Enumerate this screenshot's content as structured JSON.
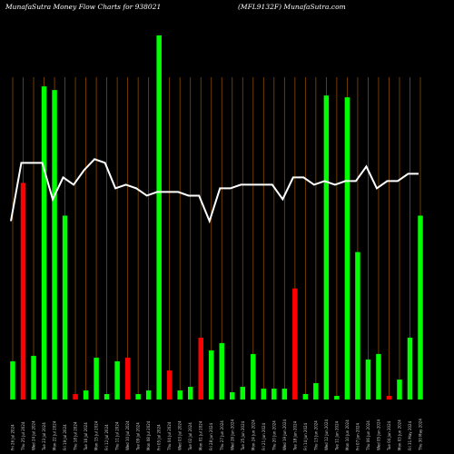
{
  "header": {
    "left": "MunafaSutra  Money Flow  Charts for 938021",
    "right": "(MFL9132F) MunafaSutra.com"
  },
  "colors": {
    "background": "#000000",
    "grid": "#8a4a00",
    "up_bar": "#00ff00",
    "down_bar": "#ff0000",
    "line": "#ffffff"
  },
  "chart_data": {
    "type": "bar",
    "ylim": [
      0,
      100
    ],
    "grid": "vertical",
    "categories": [
      "Fri 26 Jul 2024",
      "Thu 25 Jul 2024",
      "Wed 24 Jul 2024",
      "Tue 23 Jul 2024",
      "Mon 22 Jul 2024",
      "Fri 19 Jul 2024",
      "Thu 18 Jul 2024",
      "Tue 16 Jul 2024",
      "Mon 15 Jul 2024",
      "Fri 12 Jul 2024",
      "Thu 11 Jul 2024",
      "Wed 10 Jul 2024",
      "Tue 09 Jul 2024",
      "Mon 08 Jul 2024",
      "Fri 05 Jul 2024",
      "Thu 04 Jul 2024",
      "Wed 03 Jul 2024",
      "Tue 02 Jul 2024",
      "Mon 01 Jul 2024",
      "Fri 28 Jun 2024",
      "Thu 27 Jun 2024",
      "Wed 26 Jun 2024",
      "Tue 25 Jun 2024",
      "Mon 24 Jun 2024",
      "Fri 21 Jun 2024",
      "Thu 20 Jun 2024",
      "Wed 19 Jun 2024",
      "Tue 18 Jun 2024",
      "Fri 14 Jun 2024",
      "Thu 13 Jun 2024",
      "Wed 12 Jun 2024",
      "Tue 11 Jun 2024",
      "Mon 10 Jun 2024",
      "Fri 07 Jun 2024",
      "Thu 06 Jun 2024",
      "Wed 05 Jun 2024",
      "Tue 04 Jun 2024",
      "Mon 03 Jun 2024",
      "Fri 31 May 2024",
      "Thu 30 May 2024"
    ],
    "bars": [
      {
        "value": 10.5,
        "dir": "up"
      },
      {
        "value": 59.5,
        "dir": "down"
      },
      {
        "value": 12.0,
        "dir": "up"
      },
      {
        "value": 86.0,
        "dir": "up"
      },
      {
        "value": 85.0,
        "dir": "up"
      },
      {
        "value": 50.5,
        "dir": "up"
      },
      {
        "value": 1.5,
        "dir": "down"
      },
      {
        "value": 2.5,
        "dir": "up"
      },
      {
        "value": 11.5,
        "dir": "up"
      },
      {
        "value": 1.5,
        "dir": "up"
      },
      {
        "value": 10.5,
        "dir": "up"
      },
      {
        "value": 11.5,
        "dir": "down"
      },
      {
        "value": 1.5,
        "dir": "up"
      },
      {
        "value": 2.5,
        "dir": "up"
      },
      {
        "value": 100.0,
        "dir": "up"
      },
      {
        "value": 8.0,
        "dir": "down"
      },
      {
        "value": 2.5,
        "dir": "up"
      },
      {
        "value": 3.5,
        "dir": "up"
      },
      {
        "value": 17.0,
        "dir": "down"
      },
      {
        "value": 13.5,
        "dir": "up"
      },
      {
        "value": 15.5,
        "dir": "up"
      },
      {
        "value": 2.0,
        "dir": "up"
      },
      {
        "value": 3.5,
        "dir": "up"
      },
      {
        "value": 12.5,
        "dir": "up"
      },
      {
        "value": 3.0,
        "dir": "up"
      },
      {
        "value": 3.0,
        "dir": "up"
      },
      {
        "value": 3.0,
        "dir": "up"
      },
      {
        "value": 30.5,
        "dir": "down"
      },
      {
        "value": 1.5,
        "dir": "up"
      },
      {
        "value": 4.5,
        "dir": "up"
      },
      {
        "value": 83.5,
        "dir": "up"
      },
      {
        "value": 1.0,
        "dir": "up"
      },
      {
        "value": 83.0,
        "dir": "up"
      },
      {
        "value": 40.5,
        "dir": "up"
      },
      {
        "value": 11.0,
        "dir": "up"
      },
      {
        "value": 12.5,
        "dir": "up"
      },
      {
        "value": 1.0,
        "dir": "down"
      },
      {
        "value": 5.5,
        "dir": "up"
      },
      {
        "value": 17.0,
        "dir": "up"
      },
      {
        "value": 50.5,
        "dir": "up"
      }
    ],
    "line": [
      49,
      65,
      65,
      65,
      55,
      61,
      59,
      63,
      66,
      65,
      58,
      59,
      58,
      56,
      57,
      57,
      57,
      56,
      56,
      49,
      58,
      58,
      59,
      59,
      59,
      59,
      55,
      61,
      61,
      59,
      60,
      59,
      60,
      60,
      64,
      58,
      60,
      60,
      62,
      62
    ]
  }
}
